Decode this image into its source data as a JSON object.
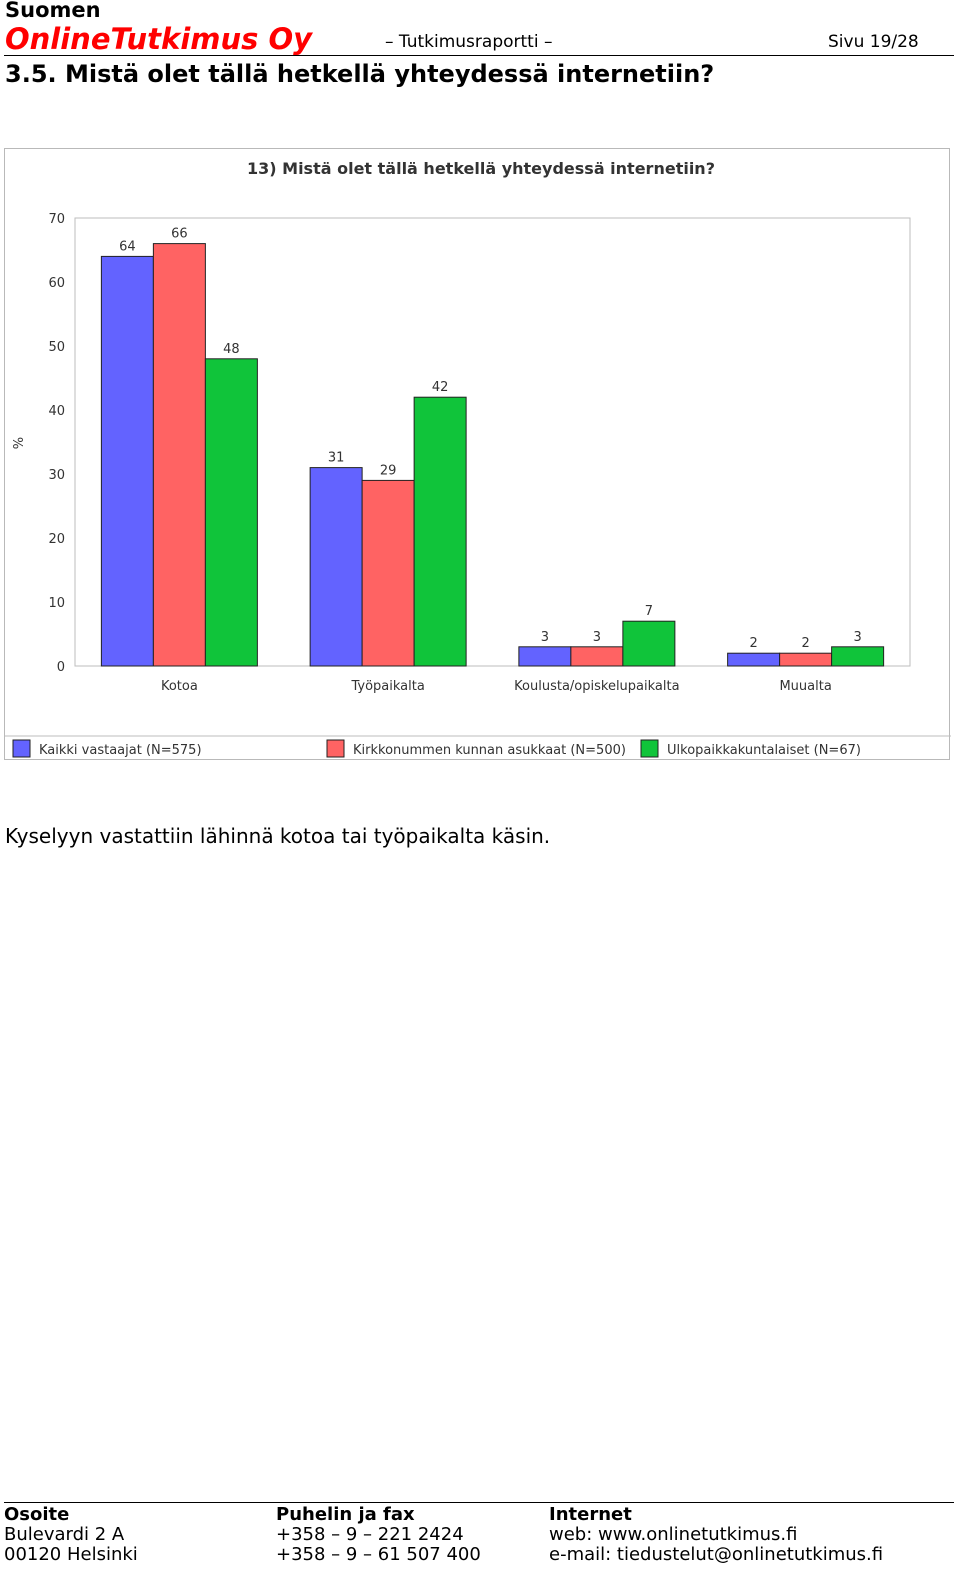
{
  "header": {
    "company_line1": "Suomen",
    "company_line2": "OnlineTutkimus Oy",
    "report": "– Tutkimusraportti –",
    "page": "Sivu 19/28"
  },
  "section_title": "3.5. Mistä olet tällä hetkellä yhteydessä internetiin?",
  "chart_data": {
    "type": "bar",
    "title": "13) Mistä olet tällä hetkellä yhteydessä internetiin?",
    "xlabel": "",
    "ylabel": "%",
    "ylim": [
      0,
      70
    ],
    "yticks": [
      "0",
      "10",
      "20",
      "30",
      "40",
      "50",
      "60",
      "70"
    ],
    "grid": false,
    "legend_position": "bottom",
    "categories": [
      "Kotoa",
      "Työpaikalta",
      "Koulusta/opiskelupaikalta",
      "Muualta"
    ],
    "series": [
      {
        "name": "Kaikki vastaajat (N=575)",
        "color": "#6363ff",
        "values": [
          64,
          31,
          3,
          2
        ]
      },
      {
        "name": "Kirkkonummen kunnan asukkaat (N=500)",
        "color": "#ff6363",
        "values": [
          66,
          29,
          3,
          2
        ]
      },
      {
        "name": "Ulkopaikkakuntalaiset (N=67)",
        "color": "#10c43a",
        "values": [
          48,
          42,
          7,
          3
        ]
      }
    ]
  },
  "body_text": "Kyselyyn vastattiin lähinnä kotoa tai työpaikalta käsin.",
  "footer": {
    "address": {
      "heading": "Osoite",
      "line1": "Bulevardi 2 A",
      "line2": "00120 Helsinki"
    },
    "phone": {
      "heading": "Puhelin ja fax",
      "line1": "+358 – 9 – 221 2424",
      "line2": "+358 – 9 – 61 507 400"
    },
    "internet": {
      "heading": "Internet",
      "line1": "web: www.onlinetutkimus.fi",
      "line2": "e-mail: tiedustelut@onlinetutkimus.fi"
    }
  }
}
